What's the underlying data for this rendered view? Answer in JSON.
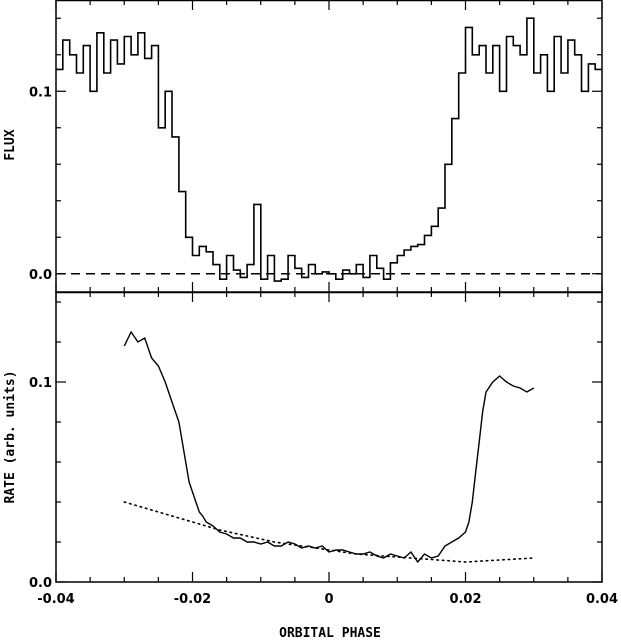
{
  "chart_data": [
    {
      "type": "line",
      "panel": "top",
      "title": "",
      "xlabel": "",
      "ylabel": "FLUX",
      "xlim": [
        -0.04,
        0.04
      ],
      "ylim": [
        -0.01,
        0.15
      ],
      "ytick_labels": [
        "0.0",
        "0.1"
      ],
      "grid": false,
      "reference_line": {
        "y": 0.0,
        "style": "dashed"
      },
      "series": [
        {
          "style": "step",
          "x": [
            -0.04,
            -0.039,
            -0.038,
            -0.037,
            -0.036,
            -0.035,
            -0.034,
            -0.033,
            -0.032,
            -0.031,
            -0.03,
            -0.029,
            -0.028,
            -0.027,
            -0.026,
            -0.025,
            -0.024,
            -0.023,
            -0.022,
            -0.021,
            -0.02,
            -0.019,
            -0.018,
            -0.017,
            -0.016,
            -0.015,
            -0.014,
            -0.013,
            -0.012,
            -0.011,
            -0.01,
            -0.009,
            -0.008,
            -0.007,
            -0.006,
            -0.005,
            -0.004,
            -0.003,
            -0.002,
            -0.001,
            0.0,
            0.001,
            0.002,
            0.003,
            0.004,
            0.005,
            0.006,
            0.007,
            0.008,
            0.009,
            0.01,
            0.011,
            0.012,
            0.013,
            0.014,
            0.015,
            0.016,
            0.017,
            0.018,
            0.019,
            0.02,
            0.021,
            0.022,
            0.023,
            0.024,
            0.025,
            0.026,
            0.027,
            0.028,
            0.029,
            0.03,
            0.031,
            0.032,
            0.033,
            0.034,
            0.035,
            0.036,
            0.037,
            0.038,
            0.039
          ],
          "y": [
            0.112,
            0.128,
            0.12,
            0.11,
            0.125,
            0.1,
            0.132,
            0.11,
            0.128,
            0.115,
            0.13,
            0.12,
            0.132,
            0.118,
            0.125,
            0.08,
            0.1,
            0.075,
            0.045,
            0.02,
            0.01,
            0.015,
            0.012,
            0.005,
            -0.003,
            0.01,
            0.002,
            -0.002,
            0.005,
            0.038,
            -0.003,
            0.01,
            -0.004,
            -0.003,
            0.01,
            0.003,
            -0.002,
            0.005,
            0.0,
            0.001,
            0.0,
            -0.003,
            0.002,
            0.0,
            0.005,
            -0.002,
            0.01,
            0.003,
            -0.003,
            0.006,
            0.01,
            0.013,
            0.015,
            0.016,
            0.021,
            0.026,
            0.036,
            0.06,
            0.085,
            0.11,
            0.135,
            0.12,
            0.125,
            0.11,
            0.125,
            0.1,
            0.13,
            0.125,
            0.12,
            0.14,
            0.11,
            0.12,
            0.1,
            0.13,
            0.11,
            0.128,
            0.12,
            0.1,
            0.115,
            0.112
          ]
        }
      ]
    },
    {
      "type": "line",
      "panel": "bottom",
      "title": "",
      "xlabel": "ORBITAL PHASE",
      "ylabel": "RATE (arb. units)",
      "xlim": [
        -0.04,
        0.04
      ],
      "ylim": [
        0.0,
        0.145
      ],
      "xtick_labels": [
        "-0.04",
        "-0.02",
        "0",
        "0.02",
        "0.04"
      ],
      "ytick_labels": [
        "0.0",
        "0.1"
      ],
      "grid": false,
      "series": [
        {
          "style": "solid",
          "x": [
            -0.03,
            -0.029,
            -0.028,
            -0.027,
            -0.026,
            -0.025,
            -0.024,
            -0.023,
            -0.022,
            -0.0215,
            -0.021,
            -0.0205,
            -0.02,
            -0.0195,
            -0.019,
            -0.0185,
            -0.018,
            -0.017,
            -0.016,
            -0.015,
            -0.014,
            -0.013,
            -0.012,
            -0.011,
            -0.01,
            -0.009,
            -0.008,
            -0.007,
            -0.006,
            -0.005,
            -0.004,
            -0.003,
            -0.002,
            -0.001,
            0.0,
            0.001,
            0.002,
            0.003,
            0.004,
            0.005,
            0.006,
            0.007,
            0.008,
            0.009,
            0.01,
            0.011,
            0.012,
            0.013,
            0.014,
            0.015,
            0.016,
            0.017,
            0.018,
            0.019,
            0.02,
            0.0205,
            0.021,
            0.0215,
            0.022,
            0.0225,
            0.023,
            0.024,
            0.025,
            0.026,
            0.027,
            0.028,
            0.029,
            0.03
          ],
          "y": [
            0.118,
            0.125,
            0.12,
            0.122,
            0.112,
            0.108,
            0.1,
            0.09,
            0.08,
            0.07,
            0.06,
            0.05,
            0.045,
            0.04,
            0.035,
            0.033,
            0.03,
            0.028,
            0.025,
            0.024,
            0.022,
            0.022,
            0.02,
            0.02,
            0.019,
            0.02,
            0.018,
            0.018,
            0.02,
            0.019,
            0.017,
            0.018,
            0.017,
            0.018,
            0.015,
            0.016,
            0.016,
            0.015,
            0.014,
            0.014,
            0.015,
            0.013,
            0.012,
            0.014,
            0.013,
            0.012,
            0.015,
            0.01,
            0.014,
            0.012,
            0.013,
            0.018,
            0.02,
            0.022,
            0.025,
            0.03,
            0.04,
            0.055,
            0.07,
            0.085,
            0.095,
            0.1,
            0.103,
            0.1,
            0.098,
            0.097,
            0.095,
            0.097
          ]
        },
        {
          "style": "dotted",
          "x": [
            -0.03,
            -0.025,
            -0.02,
            -0.016,
            -0.012,
            -0.008,
            -0.004,
            0.0,
            0.004,
            0.008,
            0.012,
            0.016,
            0.02,
            0.025,
            0.03
          ],
          "y": [
            0.04,
            0.035,
            0.03,
            0.026,
            0.023,
            0.02,
            0.018,
            0.016,
            0.014,
            0.013,
            0.012,
            0.011,
            0.01,
            0.011,
            0.012
          ]
        }
      ]
    }
  ]
}
